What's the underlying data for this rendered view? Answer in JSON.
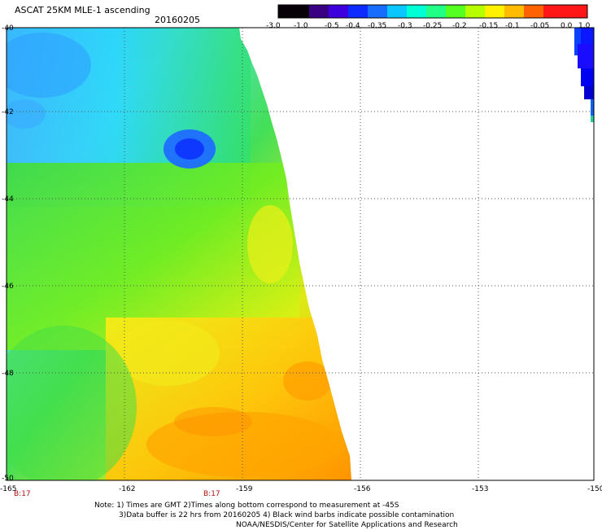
{
  "header": {
    "title": "ASCAT 25KM MLE-1 ascending",
    "date": "20160205"
  },
  "colorbar": {
    "labels": [
      "-3.0",
      "-1.0",
      "-0.5",
      "-0.4",
      "-0.35",
      "-0.3",
      "-0.25",
      "-0.2",
      "-0.15",
      "-0.1",
      "-0.05",
      "0.0",
      "1.0"
    ],
    "colors": [
      "#0a0010",
      "#2a0060",
      "#4b00c8",
      "#0a20ff",
      "#1a6dff",
      "#00c8ff",
      "#00ffd0",
      "#20ff80",
      "#5aff20",
      "#b0ff00",
      "#ffff00",
      "#ffb000",
      "#ff5000",
      "#ff1010"
    ]
  },
  "axes": {
    "x_ticks": [
      "-165",
      "-162",
      "-159",
      "-156",
      "-153",
      "-150"
    ],
    "y_ticks": [
      "-40",
      "-42",
      "-44",
      "-46",
      "-48",
      "-50"
    ],
    "bottom_time_labels": [
      "B:17",
      "B:17"
    ]
  },
  "notes": {
    "line1": "Note: 1) Times are GMT 2)Times along bottom correspond to measurement at -45S",
    "line2": "3)Data buffer is 22 hrs from 20160205 4) Black wind barbs indicate possible contamination",
    "line3": "NOAA/NESDIS/Center for Satellite Applications and Research"
  },
  "map_data": {
    "lon_range": [
      -165,
      -150
    ],
    "lat_range": [
      -50,
      -40
    ],
    "swath_right_edge_lon_at_top": -159.1,
    "swath_right_edge_lon_at_bottom": -155.8,
    "secondary_swath_lon_range": [
      -150.7,
      -150
    ],
    "secondary_swath_lat_range": [
      -42.1,
      -40
    ]
  }
}
